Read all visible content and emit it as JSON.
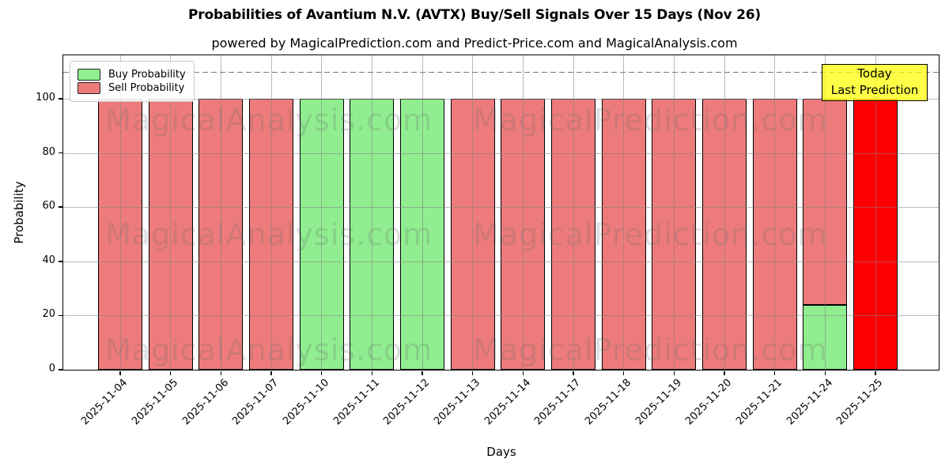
{
  "title": "Probabilities of Avantium N.V. (AVTX) Buy/Sell Signals Over 15 Days (Nov 26)",
  "subtitle": "powered by MagicalPrediction.com and Predict-Price.com and MagicalAnalysis.com",
  "legend": {
    "items": [
      {
        "label": "Buy Probability",
        "color": "#90ee90"
      },
      {
        "label": "Sell Probability",
        "color": "#ee7b7b"
      }
    ]
  },
  "annotation": {
    "line1": "Today",
    "line2": "Last Prediction",
    "bg": "#ffff00"
  },
  "watermarks": {
    "left": "MagicalAnalysis.com",
    "right": "MagicalPrediction.com"
  },
  "colors": {
    "buy": "#90ee90",
    "sell": "#ee7b7b",
    "today_bar": "#ff0000",
    "bar_edge": "#000000",
    "grid": "#828282",
    "dashed_line": "#787878"
  },
  "chart_data": {
    "type": "bar",
    "stacked": true,
    "title": "Probabilities of Avantium N.V. (AVTX) Buy/Sell Signals Over 15 Days (Nov 26)",
    "subtitle": "powered by MagicalPrediction.com and Predict-Price.com and MagicalAnalysis.com",
    "xlabel": "Days",
    "ylabel": "Probability",
    "categories": [
      "2025-11-04",
      "2025-11-05",
      "2025-11-06",
      "2025-11-07",
      "2025-11-10",
      "2025-11-11",
      "2025-11-12",
      "2025-11-13",
      "2025-11-14",
      "2025-11-17",
      "2025-11-18",
      "2025-11-19",
      "2025-11-20",
      "2025-11-21",
      "2025-11-24",
      "2025-11-25"
    ],
    "series": [
      {
        "name": "Buy Probability",
        "color": "#90ee90",
        "values": [
          0,
          0,
          0,
          0,
          100,
          100,
          100,
          0,
          0,
          0,
          0,
          0,
          0,
          0,
          24,
          0
        ]
      },
      {
        "name": "Sell Probability",
        "color": "#ee7b7b",
        "values": [
          100,
          100,
          100,
          100,
          0,
          0,
          0,
          100,
          100,
          100,
          100,
          100,
          100,
          100,
          76,
          0
        ]
      },
      {
        "name": "Today Last Prediction",
        "color": "#ff0000",
        "values": [
          0,
          0,
          0,
          0,
          0,
          0,
          0,
          0,
          0,
          0,
          0,
          0,
          0,
          0,
          0,
          100
        ]
      }
    ],
    "ylim": [
      0,
      116
    ],
    "yticks": [
      0,
      20,
      40,
      60,
      80,
      100
    ],
    "dashed_line_y": 110,
    "grid": true,
    "grid_above_bars": true,
    "legend_position": "upper left"
  }
}
